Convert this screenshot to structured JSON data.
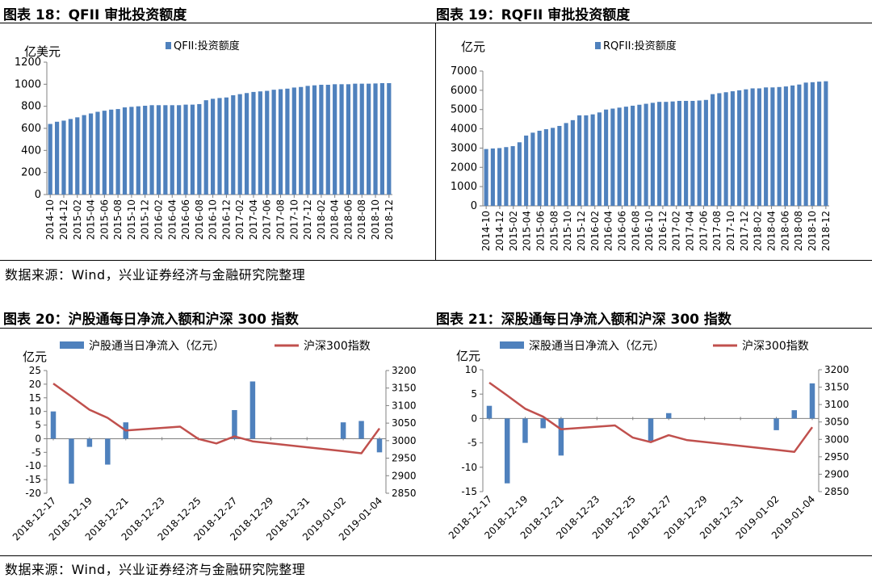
{
  "section_top": {
    "source": "数据来源：Wind，兴业证券经济与金融研究院整理"
  },
  "section_bottom": {
    "source": "数据来源：Wind，兴业证券经济与金融研究院整理"
  },
  "colors": {
    "bar": "#4F81BD",
    "line": "#C0504D",
    "axis": "#808080",
    "grid": "#d9d9d9"
  },
  "chart_data": [
    {
      "id": "fig18",
      "type": "bar",
      "title": "图表 18：QFII 审批投资额度",
      "ylabel": "亿美元",
      "legend": "QFII:投资额度",
      "legend_placement": "top",
      "ylim": [
        0,
        1200
      ],
      "yticks": [
        0,
        200,
        400,
        600,
        800,
        1000,
        1200
      ],
      "x_labels": [
        "2014-10",
        "2014-12",
        "2015-02",
        "2015-04",
        "2015-06",
        "2015-08",
        "2015-10",
        "2015-12",
        "2016-02",
        "2016-04",
        "2016-06",
        "2016-08",
        "2016-10",
        "2016-12",
        "2017-02",
        "2017-04",
        "2017-06",
        "2017-08",
        "2017-10",
        "2017-12",
        "2018-02",
        "2018-04",
        "2018-06",
        "2018-08",
        "2018-10",
        "2018-12"
      ],
      "values": [
        640,
        660,
        670,
        685,
        700,
        720,
        735,
        750,
        760,
        770,
        775,
        790,
        795,
        800,
        805,
        810,
        810,
        810,
        810,
        810,
        815,
        815,
        820,
        855,
        868,
        875,
        880,
        900,
        910,
        920,
        930,
        935,
        940,
        950,
        955,
        960,
        970,
        975,
        985,
        990,
        995,
        995,
        1000,
        1000,
        1000,
        1005,
        1005,
        1005,
        1007,
        1010,
        1010
      ]
    },
    {
      "id": "fig19",
      "type": "bar",
      "title": "图表 19：RQFII 审批投资额度",
      "ylabel": "亿元",
      "legend": "RQFII:投资额度",
      "legend_placement": "top",
      "ylim": [
        0,
        7000
      ],
      "yticks": [
        0,
        1000,
        2000,
        3000,
        4000,
        5000,
        6000,
        7000
      ],
      "x_labels": [
        "2014-10",
        "2014-12",
        "2015-02",
        "2015-04",
        "2015-06",
        "2015-08",
        "2015-10",
        "2015-12",
        "2016-02",
        "2016-04",
        "2016-06",
        "2016-08",
        "2016-10",
        "2016-12",
        "2017-02",
        "2017-04",
        "2017-06",
        "2017-08",
        "2017-10",
        "2017-12",
        "2018-02",
        "2018-04",
        "2018-06",
        "2018-08",
        "2018-10",
        "2018-12"
      ],
      "values": [
        2950,
        2980,
        3000,
        3050,
        3100,
        3300,
        3650,
        3800,
        3900,
        3980,
        4050,
        4150,
        4300,
        4450,
        4700,
        4700,
        4750,
        4850,
        5000,
        5050,
        5100,
        5150,
        5200,
        5250,
        5300,
        5350,
        5400,
        5400,
        5420,
        5450,
        5450,
        5450,
        5470,
        5500,
        5800,
        5850,
        5900,
        5950,
        6000,
        6050,
        6100,
        6100,
        6150,
        6150,
        6170,
        6200,
        6250,
        6300,
        6400,
        6420,
        6450,
        6470
      ]
    },
    {
      "id": "fig20",
      "type": "bar+line",
      "title": "图表 20：沪股通每日净流入额和沪深 300 指数",
      "ylabel": "亿元",
      "legend_bar": "沪股通当日净流入（亿元）",
      "legend_line": "沪深300指数",
      "legend_placement": "top",
      "ylim_left": [
        -20,
        25
      ],
      "yticks_left": [
        -20,
        -15,
        -10,
        -5,
        0,
        5,
        10,
        15,
        20,
        25
      ],
      "ylim_right": [
        2850,
        3200
      ],
      "yticks_right": [
        2850,
        2900,
        2950,
        3000,
        3050,
        3100,
        3150,
        3200
      ],
      "dates": [
        "2018-12-17",
        "2018-12-18",
        "2018-12-19",
        "2018-12-20",
        "2018-12-21",
        "2018-12-24",
        "2018-12-25",
        "2018-12-26",
        "2018-12-27",
        "2018-12-28",
        "2019-01-02",
        "2019-01-03",
        "2019-01-04"
      ],
      "x_tick_labels": [
        "2018-12-17",
        "2018-12-19",
        "2018-12-21",
        "2018-12-23",
        "2018-12-25",
        "2018-12-27",
        "2018-12-29",
        "2018-12-31",
        "2019-01-02",
        "2019-01-04"
      ],
      "bars": [
        10,
        -16.5,
        -3,
        -9.5,
        6,
        0,
        0,
        0,
        10.5,
        21,
        6,
        6.5,
        -5
      ],
      "line": [
        3163,
        3126,
        3088,
        3065,
        3029,
        3040,
        3005,
        2992,
        3012,
        2998,
        2970,
        2964,
        3035
      ]
    },
    {
      "id": "fig21",
      "type": "bar+line",
      "title": "图表 21：深股通每日净流入额和沪深 300 指数",
      "ylabel": "亿元",
      "legend_bar": "深股通当日净流入（亿元）",
      "legend_line": "沪深300指数",
      "legend_placement": "top",
      "ylim_left": [
        -15,
        10
      ],
      "yticks_left": [
        -15,
        -10,
        -5,
        0,
        5,
        10
      ],
      "ylim_right": [
        2850,
        3200
      ],
      "yticks_right": [
        2850,
        2900,
        2950,
        3000,
        3050,
        3100,
        3150,
        3200
      ],
      "dates": [
        "2018-12-17",
        "2018-12-18",
        "2018-12-19",
        "2018-12-20",
        "2018-12-21",
        "2018-12-24",
        "2018-12-25",
        "2018-12-26",
        "2018-12-27",
        "2018-12-28",
        "2019-01-02",
        "2019-01-03",
        "2019-01-04"
      ],
      "x_tick_labels": [
        "2018-12-17",
        "2018-12-19",
        "2018-12-21",
        "2018-12-23",
        "2018-12-25",
        "2018-12-27",
        "2018-12-29",
        "2018-12-31",
        "2019-01-02",
        "2019-01-04"
      ],
      "bars": [
        2.6,
        -13.3,
        -5,
        -2,
        -7.6,
        0,
        0,
        -4.6,
        1.1,
        0,
        -2.4,
        1.7,
        7.2
      ],
      "line": [
        3163,
        3126,
        3088,
        3065,
        3029,
        3040,
        3005,
        2992,
        3012,
        2998,
        2970,
        2964,
        3035
      ]
    }
  ]
}
